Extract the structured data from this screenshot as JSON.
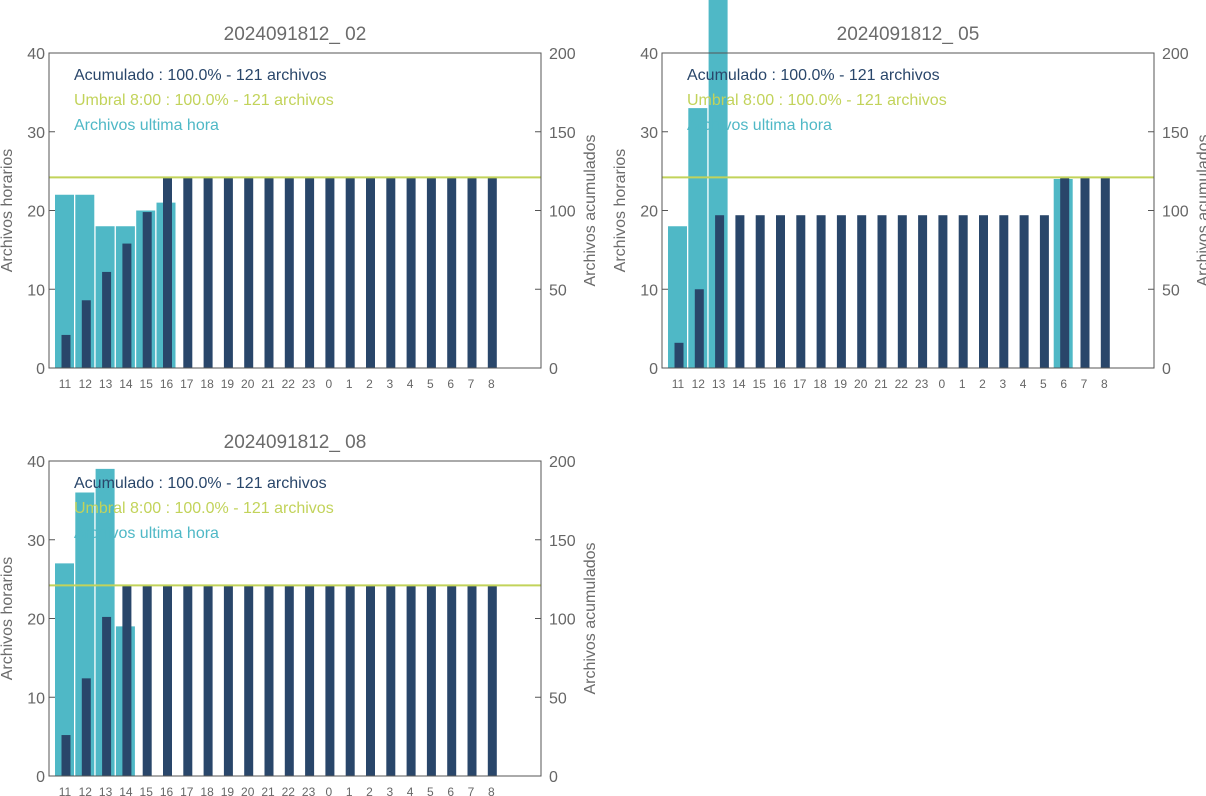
{
  "colors": {
    "hourly": "#4fb8c6",
    "accumulated": "#29466a",
    "threshold": "#c2d35a",
    "axis": "#555555",
    "text": "#6b6b6b"
  },
  "chart_data": [
    {
      "type": "bar",
      "title": "2024091812_ 02",
      "ylabel": "Archivos horarios",
      "y2label": "Archivos acumulados",
      "ylim": [
        0,
        40
      ],
      "y2lim": [
        0,
        200
      ],
      "yticks": [
        "0",
        "10",
        "20",
        "30",
        "40"
      ],
      "y2ticks": [
        "0",
        "50",
        "100",
        "150",
        "200"
      ],
      "categories": [
        "11",
        "12",
        "13",
        "14",
        "15",
        "16",
        "17",
        "18",
        "19",
        "20",
        "21",
        "22",
        "23",
        "0",
        "1",
        "2",
        "3",
        "4",
        "5",
        "6",
        "7",
        "8"
      ],
      "legend": [
        {
          "text": "Acumulado : 100.0% - 121 archivos",
          "color": "#29466a"
        },
        {
          "text": "Umbral 8:00 : 100.0% - 121 archivos",
          "color": "#c2d35a"
        },
        {
          "text": "Archivos ultima hora",
          "color": "#4fb8c6"
        }
      ],
      "threshold": 121,
      "series": [
        {
          "name": "Archivos ultima hora",
          "values": [
            22,
            22,
            18,
            18,
            20,
            21,
            0,
            0,
            0,
            0,
            0,
            0,
            0,
            0,
            0,
            0,
            0,
            0,
            0,
            0,
            0,
            0
          ]
        },
        {
          "name": "Acumulado",
          "values": [
            21,
            43,
            61,
            79,
            99,
            121,
            121,
            121,
            121,
            121,
            121,
            121,
            121,
            121,
            121,
            121,
            121,
            121,
            121,
            121,
            121,
            121
          ]
        }
      ]
    },
    {
      "type": "bar",
      "title": "2024091812_ 05",
      "ylabel": "Archivos horarios",
      "y2label": "Archivos acumulados",
      "ylim": [
        0,
        40
      ],
      "y2lim": [
        0,
        200
      ],
      "yticks": [
        "0",
        "10",
        "20",
        "30",
        "40"
      ],
      "y2ticks": [
        "0",
        "50",
        "100",
        "150",
        "200"
      ],
      "categories": [
        "11",
        "12",
        "13",
        "14",
        "15",
        "16",
        "17",
        "18",
        "19",
        "20",
        "21",
        "22",
        "23",
        "0",
        "1",
        "2",
        "3",
        "4",
        "5",
        "6",
        "7",
        "8"
      ],
      "legend": [
        {
          "text": "Acumulado : 100.0% - 121 archivos",
          "color": "#29466a"
        },
        {
          "text": "Umbral 8:00 : 100.0% - 121 archivos",
          "color": "#c2d35a"
        },
        {
          "text": "Archivos ultima hora",
          "color": "#4fb8c6"
        }
      ],
      "threshold": 121,
      "series": [
        {
          "name": "Archivos ultima hora",
          "values": [
            18,
            33,
            47,
            0,
            0,
            0,
            0,
            0,
            0,
            0,
            0,
            0,
            0,
            0,
            0,
            0,
            0,
            0,
            0,
            24,
            0,
            0
          ]
        },
        {
          "name": "Acumulado",
          "values": [
            16,
            50,
            97,
            97,
            97,
            97,
            97,
            97,
            97,
            97,
            97,
            97,
            97,
            97,
            97,
            97,
            97,
            97,
            97,
            121,
            121,
            121
          ]
        }
      ]
    },
    {
      "type": "bar",
      "title": "2024091812_ 08",
      "ylabel": "Archivos horarios",
      "y2label": "Archivos acumulados",
      "ylim": [
        0,
        40
      ],
      "y2lim": [
        0,
        200
      ],
      "yticks": [
        "0",
        "10",
        "20",
        "30",
        "40"
      ],
      "y2ticks": [
        "0",
        "50",
        "100",
        "150",
        "200"
      ],
      "categories": [
        "11",
        "12",
        "13",
        "14",
        "15",
        "16",
        "17",
        "18",
        "19",
        "20",
        "21",
        "22",
        "23",
        "0",
        "1",
        "2",
        "3",
        "4",
        "5",
        "6",
        "7",
        "8"
      ],
      "legend": [
        {
          "text": "Acumulado : 100.0% - 121 archivos",
          "color": "#29466a"
        },
        {
          "text": "Umbral 8:00 : 100.0% - 121 archivos",
          "color": "#c2d35a"
        },
        {
          "text": "Archivos ultima hora",
          "color": "#4fb8c6"
        }
      ],
      "threshold": 121,
      "series": [
        {
          "name": "Archivos ultima hora",
          "values": [
            27,
            36,
            39,
            19,
            0,
            0,
            0,
            0,
            0,
            0,
            0,
            0,
            0,
            0,
            0,
            0,
            0,
            0,
            0,
            0,
            0,
            0
          ]
        },
        {
          "name": "Acumulado",
          "values": [
            26,
            62,
            101,
            121,
            121,
            121,
            121,
            121,
            121,
            121,
            121,
            121,
            121,
            121,
            121,
            121,
            121,
            121,
            121,
            121,
            121,
            121
          ]
        }
      ]
    }
  ]
}
